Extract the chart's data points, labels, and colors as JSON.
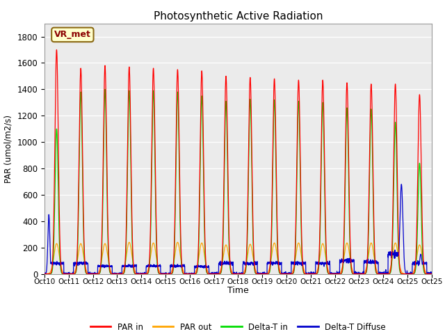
{
  "title": "Photosynthetic Active Radiation",
  "ylabel": "PAR (umol/m2/s)",
  "xlabel": "Time",
  "annotation": "VR_met",
  "bg_color": "#ebebeb",
  "legend": [
    "PAR in",
    "PAR out",
    "Delta-T in",
    "Delta-T Diffuse"
  ],
  "colors": {
    "PAR_in": "#ff0000",
    "PAR_out": "#ffa500",
    "Delta_T_in": "#00dd00",
    "Delta_T_Diffuse": "#0000cc"
  },
  "ylim": [
    0,
    1900
  ],
  "yticks": [
    0,
    200,
    400,
    600,
    800,
    1000,
    1200,
    1400,
    1600,
    1800
  ],
  "PAR_in_peaks": [
    1700,
    1560,
    1580,
    1570,
    1560,
    1550,
    1540,
    1500,
    1490,
    1480,
    1470,
    1470,
    1450,
    1440,
    1440,
    1360
  ],
  "PAR_out_peaks": [
    230,
    230,
    230,
    240,
    235,
    240,
    235,
    220,
    225,
    235,
    235,
    230,
    235,
    235,
    235,
    220
  ],
  "Delta_T_in_peaks": [
    1100,
    1380,
    1400,
    1390,
    1390,
    1380,
    1350,
    1310,
    1325,
    1320,
    1310,
    1300,
    1260,
    1250,
    1150,
    840
  ],
  "Delta_T_Diffuse_plateau": [
    80,
    80,
    60,
    60,
    60,
    60,
    55,
    80,
    80,
    80,
    80,
    80,
    100,
    90,
    150,
    80
  ],
  "Delta_T_Diffuse_spike_day1": 450,
  "Delta_T_Diffuse_spike_day15": 680,
  "samples_per_day": 200,
  "tick_labels": [
    "Oct 10",
    "Oct 11",
    "Oct 12",
    "Oct 13",
    "Oct 14",
    "Oct 15",
    "Oct 16",
    "Oct 17",
    "Oct 18",
    "Oct 19",
    "Oct 20",
    "Oct 21",
    "Oct 22",
    "Oct 23",
    "Oct 24",
    "Oct 25"
  ]
}
